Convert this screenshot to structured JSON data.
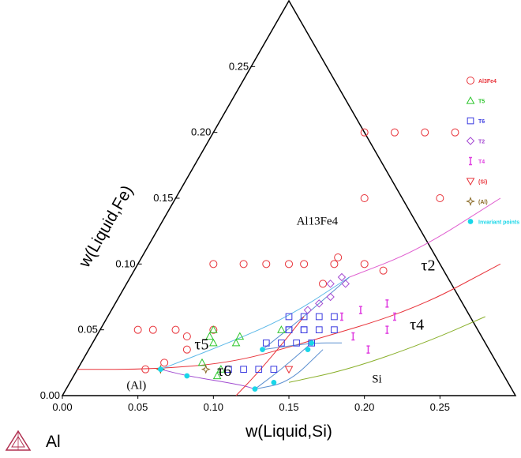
{
  "chart_data": {
    "type": "scatter",
    "subtype": "ternary-isothermal-section",
    "xlabel": "w(Liquid,Si)",
    "ylabel": "w(Liquid,Fe)",
    "xlim": [
      0,
      0.3
    ],
    "ylim": [
      0,
      0.3
    ],
    "x_ticks": [
      "0.00",
      "0.05",
      "0.10",
      "0.15",
      "0.20",
      "0.25"
    ],
    "y_ticks": [
      "0.00",
      "0.05",
      "0.10",
      "0.15",
      "0.20",
      "0.25"
    ],
    "corner_label": "Al",
    "legend_position": "right",
    "series": [
      {
        "name": "Al3Fe4",
        "marker": "circle",
        "color": "#e8333a",
        "x": [
          0.025,
          0.035,
          0.05,
          0.06,
          0.065,
          0.075,
          0.045,
          0.055,
          0.05,
          0.07,
          0.085,
          0.1,
          0.11,
          0.13,
          0.15,
          0.165,
          0.125,
          0.175,
          0.1,
          0.12,
          0.14,
          0.16,
          0.13,
          0.13
        ],
        "y": [
          0.05,
          0.05,
          0.05,
          0.045,
          0.035,
          0.05,
          0.02,
          0.025,
          0.1,
          0.1,
          0.1,
          0.1,
          0.1,
          0.1,
          0.1,
          0.095,
          0.15,
          0.15,
          0.2,
          0.2,
          0.2,
          0.2,
          0.105,
          0.085
        ]
      },
      {
        "name": "T5",
        "marker": "triangle",
        "color": "#2cc52c",
        "x": [
          0.075,
          0.08,
          0.095,
          0.095,
          0.08,
          0.075,
          0.095,
          0.095,
          0.12
        ],
        "y": [
          0.045,
          0.04,
          0.02,
          0.015,
          0.025,
          0.05,
          0.045,
          0.04,
          0.05
        ]
      },
      {
        "name": "T6",
        "marker": "square",
        "color": "#3a3ae0",
        "x": [
          0.12,
          0.13,
          0.14,
          0.15,
          0.125,
          0.135,
          0.145,
          0.155,
          0.115,
          0.125,
          0.135,
          0.145,
          0.1,
          0.11,
          0.12,
          0.13,
          0.125,
          0.135
        ],
        "y": [
          0.06,
          0.06,
          0.06,
          0.06,
          0.05,
          0.05,
          0.05,
          0.05,
          0.04,
          0.04,
          0.04,
          0.04,
          0.02,
          0.02,
          0.02,
          0.02,
          0.05,
          0.05
        ]
      },
      {
        "name": "T2",
        "marker": "diamond",
        "color": "#a54ad2",
        "x": [
          0.14,
          0.135,
          0.14,
          0.135,
          0.13,
          0.145
        ],
        "y": [
          0.09,
          0.085,
          0.075,
          0.07,
          0.065,
          0.085
        ]
      },
      {
        "name": "T4",
        "marker": "ibeam",
        "color": "#e040e0",
        "x": [
          0.155,
          0.165,
          0.18,
          0.185,
          0.19,
          0.17,
          0.19
        ],
        "y": [
          0.06,
          0.065,
          0.07,
          0.035,
          0.05,
          0.045,
          0.06
        ]
      },
      {
        "name": "(Si)",
        "marker": "triangle-down",
        "color": "#e8333a",
        "x": [
          0.14
        ],
        "y": [
          0.02
        ]
      },
      {
        "name": "(Al)",
        "marker": "star",
        "color": "#8a6a26",
        "x": [
          0.055,
          0.085
        ],
        "y": [
          0.02,
          0.02
        ]
      },
      {
        "name": "Invariant points",
        "marker": "dot",
        "color": "#19d6e8",
        "x": [
          0.055,
          0.075,
          0.115,
          0.125,
          0.135,
          0.145,
          0.145
        ],
        "y": [
          0.02,
          0.015,
          0.035,
          0.005,
          0.01,
          0.04,
          0.035
        ]
      }
    ],
    "boundary_lines": [
      {
        "color": "#e8333a",
        "points": [
          [
            0.0,
            0.02
          ],
          [
            0.05,
            0.02
          ],
          [
            0.1,
            0.025
          ],
          [
            0.14,
            0.04
          ],
          [
            0.2,
            0.065
          ],
          [
            0.24,
            0.1
          ]
        ]
      },
      {
        "color": "#5bb8e8",
        "points": [
          [
            0.055,
            0.02
          ],
          [
            0.09,
            0.04
          ],
          [
            0.12,
            0.06
          ],
          [
            0.145,
            0.09
          ]
        ]
      },
      {
        "color": "#e060d0",
        "points": [
          [
            0.145,
            0.09
          ],
          [
            0.18,
            0.11
          ],
          [
            0.215,
            0.15
          ]
        ]
      },
      {
        "color": "#5b8fd0",
        "points": [
          [
            0.115,
            0.035
          ],
          [
            0.13,
            0.06
          ],
          [
            0.145,
            0.09
          ]
        ]
      },
      {
        "color": "#5b8fd0",
        "points": [
          [
            0.115,
            0.035
          ],
          [
            0.145,
            0.04
          ],
          [
            0.165,
            0.04
          ]
        ]
      },
      {
        "color": "#5b8fd0",
        "points": [
          [
            0.145,
            0.04
          ],
          [
            0.135,
            0.02
          ],
          [
            0.125,
            0.005
          ]
        ]
      },
      {
        "color": "#5b8fd0",
        "points": [
          [
            0.125,
            0.005
          ],
          [
            0.145,
            0.01
          ],
          [
            0.155,
            0.035
          ]
        ]
      },
      {
        "color": "#a04ad0",
        "points": [
          [
            0.055,
            0.02
          ],
          [
            0.075,
            0.015
          ],
          [
            0.115,
            0.008
          ],
          [
            0.125,
            0.005
          ]
        ]
      },
      {
        "color": "#8ab02c",
        "points": [
          [
            0.145,
            0.01
          ],
          [
            0.18,
            0.02
          ],
          [
            0.22,
            0.04
          ],
          [
            0.25,
            0.06
          ]
        ]
      },
      {
        "color": "#e8333a",
        "points": [
          [
            0.115,
            0.0
          ],
          [
            0.12,
            0.015
          ],
          [
            0.125,
            0.035
          ],
          [
            0.13,
            0.06
          ]
        ]
      }
    ],
    "region_labels": [
      {
        "text": "Al13Fe4",
        "x": 0.09,
        "y": 0.13,
        "size": 15
      },
      {
        "text": "τ2",
        "x": 0.19,
        "y": 0.095,
        "size": 20
      },
      {
        "text": "τ5",
        "x": 0.07,
        "y": 0.035,
        "size": 20
      },
      {
        "text": "τ6",
        "x": 0.095,
        "y": 0.015,
        "size": 20
      },
      {
        "text": "τ4",
        "x": 0.205,
        "y": 0.05,
        "size": 20
      },
      {
        "text": "(Al)",
        "x": 0.04,
        "y": 0.005,
        "size": 15
      },
      {
        "text": "Si",
        "x": 0.2,
        "y": 0.01,
        "size": 15
      }
    ]
  }
}
